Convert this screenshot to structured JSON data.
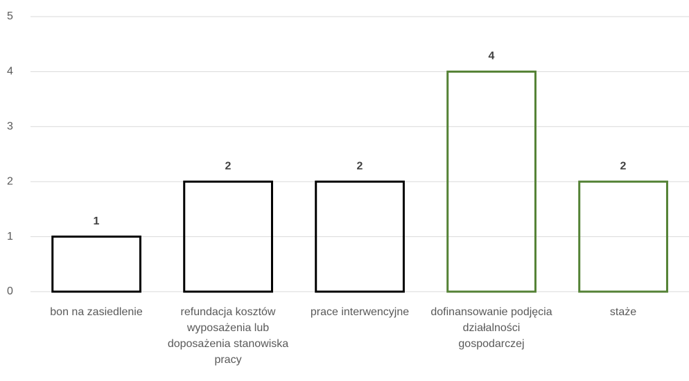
{
  "chart_data": {
    "type": "bar",
    "categories": [
      "bon na zasiedlenie",
      "refundacja kosztów wyposażenia lub doposażenia stanowiska pracy",
      "prace interwencyjne",
      "dofinansowanie podjęcia działalności gospodarczej",
      "staże"
    ],
    "values": [
      1,
      2,
      2,
      4,
      2
    ],
    "colors": [
      "#000000",
      "#000000",
      "#000000",
      "#548235",
      "#548235"
    ],
    "ylim": [
      0,
      5
    ],
    "yticks": [
      0,
      1,
      2,
      3,
      4,
      5
    ],
    "grid": true
  }
}
